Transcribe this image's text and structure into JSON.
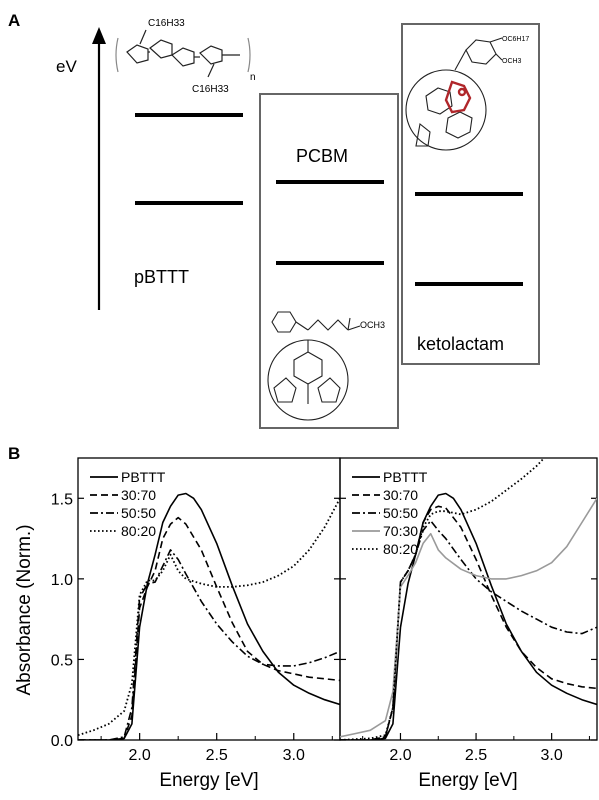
{
  "panel_a": {
    "label": "A",
    "axis_label": "eV",
    "materials": [
      {
        "name": "pBTTT",
        "levels": [
          115,
          203
        ]
      },
      {
        "name": "PCBM",
        "levels": [
          182,
          263
        ]
      },
      {
        "name": "ketolactam",
        "levels": [
          194,
          284
        ]
      }
    ],
    "structure_labels": {
      "pbttt_sub_top": "C16H33",
      "pbttt_sub_bottom": "C16H33",
      "pbttt_repeat": "n",
      "pcbm_ester": "OCH3",
      "keto_top": "OC6H17",
      "keto_mid": "OCH3"
    }
  },
  "chart_data": [
    {
      "type": "line",
      "panel_label": "B",
      "xlabel": "Energy [eV]",
      "ylabel": "Absorbance (Norm.)",
      "xlim": [
        1.6,
        3.3
      ],
      "ylim": [
        0,
        1.75
      ],
      "xticks": [
        "2.0",
        "2.5",
        "3.0"
      ],
      "yticks": [
        "0.0",
        "0.5",
        "1.0",
        "1.5"
      ],
      "legend_position": "top-left",
      "series": [
        {
          "name": "PBTTT",
          "style": "solid",
          "color": "#000000",
          "x": [
            1.6,
            1.8,
            1.9,
            1.95,
            2.0,
            2.05,
            2.1,
            2.15,
            2.2,
            2.25,
            2.3,
            2.35,
            2.4,
            2.5,
            2.6,
            2.7,
            2.8,
            2.9,
            3.0,
            3.1,
            3.2,
            3.3
          ],
          "y": [
            0.0,
            0.0,
            0.01,
            0.1,
            0.7,
            0.97,
            1.15,
            1.35,
            1.45,
            1.52,
            1.53,
            1.5,
            1.43,
            1.22,
            0.96,
            0.72,
            0.55,
            0.42,
            0.34,
            0.29,
            0.25,
            0.22
          ]
        },
        {
          "name": "30:70",
          "style": "dashed",
          "color": "#000000",
          "x": [
            1.6,
            1.8,
            1.9,
            1.95,
            2.0,
            2.05,
            2.1,
            2.15,
            2.2,
            2.25,
            2.3,
            2.4,
            2.5,
            2.6,
            2.7,
            2.8,
            2.9,
            3.0,
            3.1,
            3.2,
            3.3
          ],
          "y": [
            0.0,
            0.0,
            0.01,
            0.15,
            0.82,
            0.95,
            1.05,
            1.25,
            1.34,
            1.38,
            1.34,
            1.18,
            0.95,
            0.73,
            0.55,
            0.47,
            0.43,
            0.41,
            0.39,
            0.38,
            0.37
          ]
        },
        {
          "name": "50:50",
          "style": "dashdot",
          "color": "#000000",
          "x": [
            1.6,
            1.8,
            1.9,
            1.95,
            2.0,
            2.05,
            2.1,
            2.15,
            2.2,
            2.25,
            2.3,
            2.4,
            2.5,
            2.6,
            2.7,
            2.8,
            2.9,
            3.0,
            3.1,
            3.2,
            3.3
          ],
          "y": [
            0.0,
            0.0,
            0.02,
            0.2,
            0.88,
            0.97,
            0.98,
            1.08,
            1.18,
            1.12,
            1.03,
            0.86,
            0.72,
            0.61,
            0.52,
            0.47,
            0.46,
            0.46,
            0.48,
            0.51,
            0.55
          ]
        },
        {
          "name": "80:20",
          "style": "dotted",
          "color": "#000000",
          "x": [
            1.6,
            1.7,
            1.8,
            1.9,
            1.95,
            2.0,
            2.05,
            2.1,
            2.15,
            2.2,
            2.25,
            2.3,
            2.4,
            2.5,
            2.6,
            2.7,
            2.8,
            2.9,
            3.0,
            3.1,
            3.2,
            3.3
          ],
          "y": [
            0.03,
            0.06,
            0.1,
            0.18,
            0.35,
            0.9,
            0.99,
            0.99,
            1.05,
            1.15,
            1.05,
            1.0,
            0.97,
            0.95,
            0.95,
            0.96,
            0.98,
            1.02,
            1.08,
            1.18,
            1.32,
            1.5
          ]
        }
      ]
    },
    {
      "type": "line",
      "xlabel": "Energy [eV]",
      "xlim": [
        1.6,
        3.3
      ],
      "ylim": [
        0,
        1.75
      ],
      "xticks": [
        "2.0",
        "2.5",
        "3.0"
      ],
      "legend_position": "top-left",
      "series": [
        {
          "name": "PBTTT",
          "style": "solid",
          "color": "#000000",
          "x": [
            1.6,
            1.8,
            1.9,
            1.95,
            2.0,
            2.05,
            2.1,
            2.15,
            2.2,
            2.25,
            2.3,
            2.35,
            2.4,
            2.5,
            2.6,
            2.7,
            2.8,
            2.9,
            3.0,
            3.1,
            3.2,
            3.3
          ],
          "y": [
            0.0,
            0.0,
            0.01,
            0.1,
            0.7,
            0.97,
            1.15,
            1.35,
            1.45,
            1.52,
            1.53,
            1.5,
            1.43,
            1.22,
            0.96,
            0.72,
            0.55,
            0.42,
            0.34,
            0.29,
            0.25,
            0.22
          ]
        },
        {
          "name": "30:70",
          "style": "dashed",
          "color": "#000000",
          "x": [
            1.6,
            1.8,
            1.9,
            1.95,
            2.0,
            2.05,
            2.1,
            2.15,
            2.2,
            2.25,
            2.3,
            2.4,
            2.5,
            2.6,
            2.7,
            2.8,
            2.9,
            3.0,
            3.1,
            3.2,
            3.3
          ],
          "y": [
            0.0,
            0.0,
            0.02,
            0.2,
            0.98,
            1.05,
            1.15,
            1.35,
            1.43,
            1.45,
            1.44,
            1.32,
            1.12,
            0.9,
            0.7,
            0.55,
            0.45,
            0.38,
            0.35,
            0.33,
            0.32
          ]
        },
        {
          "name": "50:50",
          "style": "dashdot",
          "color": "#000000",
          "x": [
            1.6,
            1.8,
            1.9,
            1.95,
            2.0,
            2.05,
            2.1,
            2.15,
            2.2,
            2.25,
            2.3,
            2.4,
            2.5,
            2.6,
            2.7,
            2.8,
            2.9,
            3.0,
            3.1,
            3.2,
            3.3
          ],
          "y": [
            0.0,
            0.0,
            0.02,
            0.2,
            0.98,
            1.05,
            1.15,
            1.3,
            1.36,
            1.3,
            1.25,
            1.12,
            1.0,
            0.92,
            0.86,
            0.8,
            0.75,
            0.7,
            0.67,
            0.66,
            0.7
          ]
        },
        {
          "name": "70:30",
          "style": "solid",
          "color": "#9a9a9a",
          "x": [
            1.6,
            1.7,
            1.8,
            1.9,
            1.95,
            2.0,
            2.05,
            2.1,
            2.15,
            2.2,
            2.25,
            2.3,
            2.4,
            2.5,
            2.6,
            2.7,
            2.8,
            2.9,
            3.0,
            3.1,
            3.2,
            3.3
          ],
          "y": [
            0.02,
            0.04,
            0.06,
            0.12,
            0.3,
            0.95,
            1.02,
            1.1,
            1.22,
            1.28,
            1.18,
            1.13,
            1.06,
            1.02,
            1.0,
            1.0,
            1.02,
            1.05,
            1.1,
            1.2,
            1.35,
            1.5
          ]
        },
        {
          "name": "80:20",
          "style": "dotted",
          "color": "#000000",
          "x": [
            1.6,
            1.8,
            1.9,
            1.95,
            2.0,
            2.05,
            2.1,
            2.15,
            2.2,
            2.25,
            2.3,
            2.4,
            2.5,
            2.6,
            2.7,
            2.8,
            2.9,
            2.95
          ],
          "y": [
            0.0,
            0.01,
            0.03,
            0.2,
            0.98,
            1.05,
            1.15,
            1.32,
            1.4,
            1.42,
            1.42,
            1.4,
            1.43,
            1.48,
            1.55,
            1.62,
            1.7,
            1.75
          ]
        }
      ]
    }
  ]
}
